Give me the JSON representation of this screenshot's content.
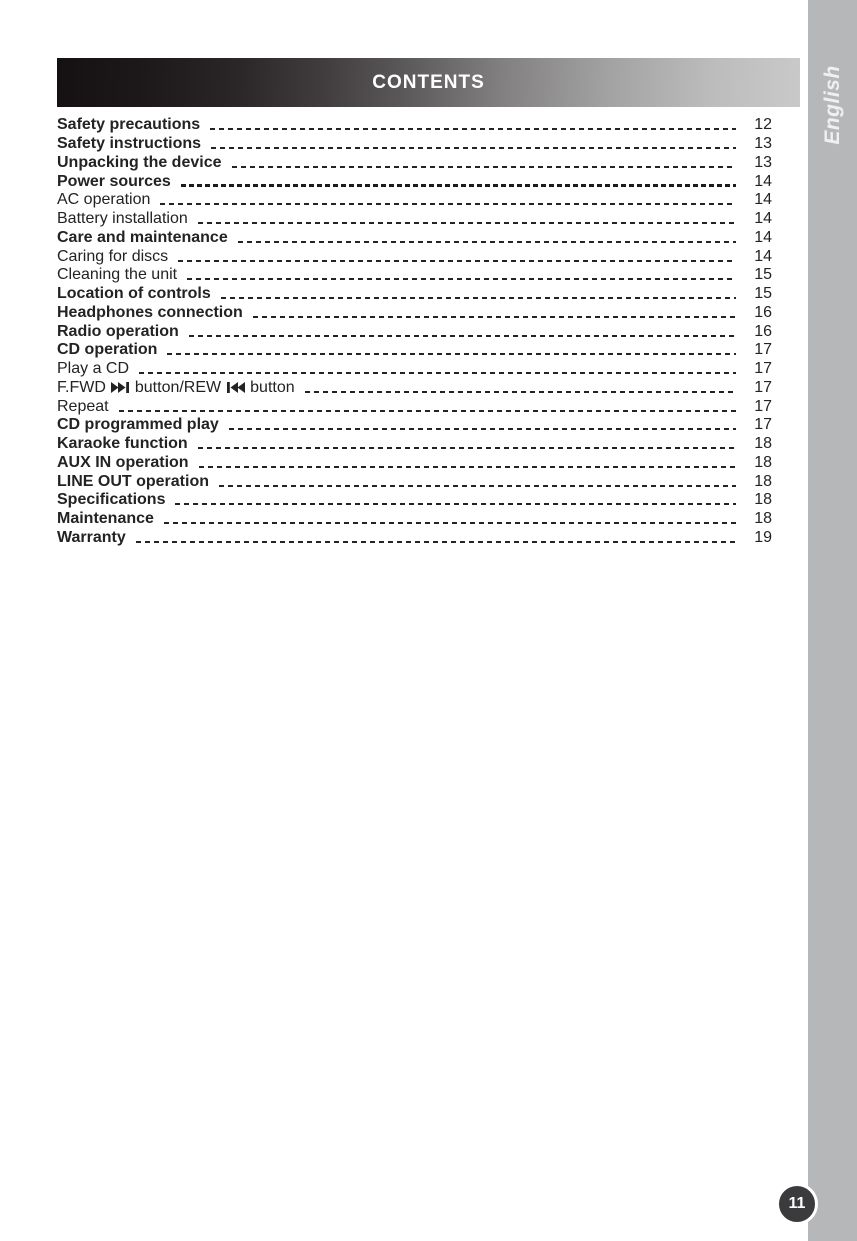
{
  "header": {
    "title": "CONTENTS",
    "gradient_left": "#151112",
    "gradient_right": "#c9c9c9",
    "title_color": "#ffffff"
  },
  "sidebar": {
    "language_label": "English",
    "tab_color": "#b6b7b9",
    "label_color": "#f0f0f1"
  },
  "footer": {
    "page_number": "11",
    "badge_color": "#3b3b3d",
    "badge_ring_color": "#ffffff"
  },
  "toc": {
    "items": [
      {
        "label": "Safety precautions",
        "page": "12",
        "bold": true
      },
      {
        "label": "Safety instructions",
        "page": "13",
        "bold": true
      },
      {
        "label": "Unpacking the device",
        "page": "13",
        "bold": true
      },
      {
        "label": "Power sources",
        "page": "14",
        "bold": true,
        "leader_bold": true
      },
      {
        "label": "AC operation",
        "page": "14",
        "bold": false
      },
      {
        "label": "Battery installation",
        "page": "14",
        "bold": false
      },
      {
        "label": "Care and maintenance",
        "page": "14",
        "bold": true
      },
      {
        "label": "Caring for discs",
        "page": "14",
        "bold": false
      },
      {
        "label": "Cleaning the unit",
        "page": "15",
        "bold": false
      },
      {
        "label": "Location of controls",
        "page": "15",
        "bold": true
      },
      {
        "label": "Headphones connection",
        "page": "16",
        "bold": true
      },
      {
        "label": "Radio operation",
        "page": "16",
        "bold": true
      },
      {
        "label": "CD operation",
        "page": "17",
        "bold": true
      },
      {
        "label": "Play a CD",
        "page": "17",
        "bold": false
      },
      {
        "label": "F.FWD ⏭ button/REW ⏮ button",
        "page": "17",
        "bold": false,
        "parts": [
          {
            "text": "F.FWD"
          },
          {
            "icon": "next-track-icon"
          },
          {
            "text": "button/REW"
          },
          {
            "icon": "prev-track-icon"
          },
          {
            "text": "button"
          }
        ]
      },
      {
        "label": "Repeat",
        "page": "17",
        "bold": false
      },
      {
        "label": "CD programmed play",
        "page": "17",
        "bold": true
      },
      {
        "label": "Karaoke function",
        "page": "18",
        "bold": true
      },
      {
        "label": "AUX IN operation",
        "page": "18",
        "bold": true
      },
      {
        "label": "LINE OUT operation",
        "page": "18",
        "bold": true
      },
      {
        "label": "Specifications",
        "page": "18",
        "bold": true
      },
      {
        "label": "Maintenance",
        "page": "18",
        "bold": true
      },
      {
        "label": "Warranty",
        "page": "19",
        "bold": true
      }
    ]
  }
}
